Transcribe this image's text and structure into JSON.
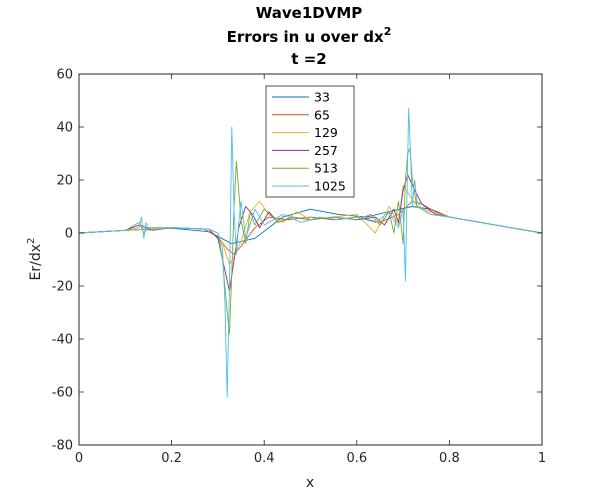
{
  "chart_data": {
    "type": "line",
    "title_lines": [
      "Wave1DVMP",
      "Errors in u over dx",
      "t =2"
    ],
    "title_superscript": "2",
    "xlabel": "x",
    "ylabel": "Er/dx",
    "ylabel_superscript": "2",
    "xlim": [
      0,
      1
    ],
    "ylim": [
      -80,
      60
    ],
    "xticks": [
      0,
      0.2,
      0.4,
      0.6,
      0.8,
      1
    ],
    "xtick_labels": [
      "0",
      "0.2",
      "0.4",
      "0.6",
      "0.8",
      "1"
    ],
    "yticks": [
      -80,
      -60,
      -40,
      -20,
      0,
      20,
      40,
      60
    ],
    "ytick_labels": [
      "-80",
      "-60",
      "-40",
      "-20",
      "0",
      "20",
      "40",
      "60"
    ],
    "grid": false,
    "legend_position": "top-center",
    "series": [
      {
        "name": "33",
        "color": "#0072BD",
        "x": [
          0,
          0.1,
          0.2,
          0.28,
          0.33,
          0.38,
          0.44,
          0.5,
          0.56,
          0.62,
          0.68,
          0.72,
          0.76,
          0.8,
          0.9,
          1
        ],
        "y": [
          0,
          1,
          1.8,
          0.5,
          -4,
          -2,
          6,
          9,
          7,
          6,
          8.5,
          10,
          9,
          6,
          3,
          0
        ]
      },
      {
        "name": "65",
        "color": "#D95319",
        "x": [
          0,
          0.1,
          0.2,
          0.27,
          0.3,
          0.32,
          0.335,
          0.35,
          0.38,
          0.41,
          0.45,
          0.5,
          0.55,
          0.6,
          0.65,
          0.69,
          0.72,
          0.74,
          0.77,
          0.8,
          0.9,
          1
        ],
        "y": [
          0,
          1,
          2,
          1.5,
          -1.5,
          -6,
          -8,
          -5,
          2,
          6,
          5,
          6,
          5,
          6,
          4,
          7,
          12,
          11,
          8,
          6,
          3,
          0
        ]
      },
      {
        "name": "129",
        "color": "#EDB120",
        "x": [
          0,
          0.1,
          0.2,
          0.28,
          0.31,
          0.325,
          0.335,
          0.35,
          0.37,
          0.39,
          0.41,
          0.44,
          0.47,
          0.5,
          0.55,
          0.6,
          0.64,
          0.67,
          0.69,
          0.7,
          0.715,
          0.73,
          0.76,
          0.8,
          0.9,
          1
        ],
        "y": [
          0,
          1,
          2,
          1.5,
          -4,
          -12,
          -9,
          -3,
          8,
          12,
          7,
          4,
          8,
          5,
          6,
          7,
          0,
          10,
          3,
          18,
          14,
          10,
          8,
          6,
          3,
          0
        ]
      },
      {
        "name": "257",
        "color": "#7E2F8E",
        "x": [
          0,
          0.1,
          0.13,
          0.16,
          0.2,
          0.28,
          0.3,
          0.315,
          0.325,
          0.335,
          0.345,
          0.36,
          0.375,
          0.39,
          0.41,
          0.43,
          0.46,
          0.5,
          0.55,
          0.6,
          0.64,
          0.66,
          0.68,
          0.69,
          0.7,
          0.71,
          0.72,
          0.74,
          0.77,
          0.8,
          0.9,
          1
        ],
        "y": [
          0,
          1,
          3,
          1,
          2,
          1.5,
          -2,
          -14,
          -22,
          -10,
          2,
          10,
          7,
          2,
          8,
          4,
          6,
          5,
          6,
          5,
          6,
          3,
          9,
          4,
          16,
          22,
          18,
          11,
          7,
          6,
          3,
          0
        ]
      },
      {
        "name": "513",
        "color": "#77AC30",
        "x": [
          0,
          0.1,
          0.13,
          0.14,
          0.15,
          0.2,
          0.28,
          0.3,
          0.31,
          0.32,
          0.325,
          0.33,
          0.335,
          0.34,
          0.35,
          0.36,
          0.37,
          0.38,
          0.4,
          0.43,
          0.46,
          0.5,
          0.55,
          0.6,
          0.63,
          0.65,
          0.67,
          0.68,
          0.69,
          0.7,
          0.705,
          0.71,
          0.715,
          0.72,
          0.73,
          0.76,
          0.8,
          0.9,
          1
        ],
        "y": [
          0,
          1,
          4,
          0,
          2,
          2,
          1.5,
          0,
          -10,
          -30,
          -38,
          -15,
          10,
          27,
          5,
          -4,
          8,
          3,
          9,
          4,
          6,
          5,
          6,
          5,
          7,
          3,
          8,
          0,
          12,
          -4,
          20,
          30,
          32,
          20,
          10,
          7,
          6,
          3,
          0
        ]
      },
      {
        "name": "1025",
        "color": "#4DBEEE",
        "x": [
          0,
          0.1,
          0.13,
          0.135,
          0.14,
          0.145,
          0.15,
          0.2,
          0.28,
          0.3,
          0.31,
          0.315,
          0.32,
          0.325,
          0.33,
          0.335,
          0.34,
          0.345,
          0.35,
          0.36,
          0.38,
          0.4,
          0.44,
          0.48,
          0.52,
          0.56,
          0.6,
          0.64,
          0.67,
          0.69,
          0.7,
          0.705,
          0.708,
          0.712,
          0.716,
          0.72,
          0.725,
          0.73,
          0.74,
          0.76,
          0.8,
          0.9,
          1
        ],
        "y": [
          0,
          1,
          2,
          6,
          -2,
          4,
          1,
          2,
          1.5,
          0,
          -6,
          -25,
          -62,
          -20,
          40,
          8,
          -8,
          4,
          12,
          -2,
          9,
          3,
          7,
          4,
          6,
          5,
          6,
          4,
          8,
          2,
          9,
          -18,
          10,
          47,
          30,
          10,
          20,
          12,
          9,
          7,
          6,
          3,
          0
        ]
      }
    ]
  }
}
